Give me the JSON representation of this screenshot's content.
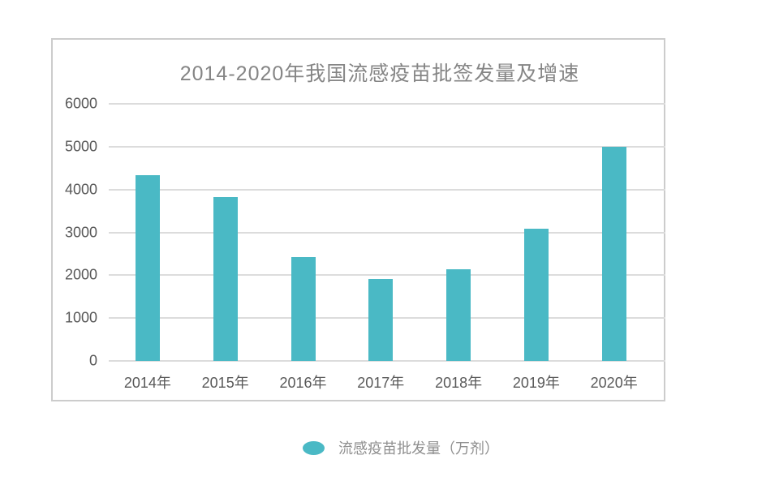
{
  "chart": {
    "title": "2014-2020年我国流感疫苗批签发量及增速",
    "legend": {
      "label": "流感疫苗批发量（万剂）",
      "marker_color": "#4ab9c5"
    }
  },
  "chart_data": {
    "type": "bar",
    "title": "2014-2020年我国流感疫苗批签发量及增速",
    "categories": [
      "2014年",
      "2015年",
      "2016年",
      "2017年",
      "2018年",
      "2019年",
      "2020年"
    ],
    "values": [
      4330,
      3830,
      2420,
      1910,
      2130,
      3080,
      5000
    ],
    "series_name": "流感疫苗批发量（万剂）",
    "xlabel": "",
    "ylabel": "",
    "ylim": [
      0,
      6000
    ],
    "yticks": [
      0,
      1000,
      2000,
      3000,
      4000,
      5000,
      6000
    ],
    "grid": true,
    "legend_position": "bottom",
    "bar_color": "#4ab9c5",
    "grid_color": "#dcdcdc",
    "title_color": "#858585",
    "tick_label_color": "#595959"
  }
}
